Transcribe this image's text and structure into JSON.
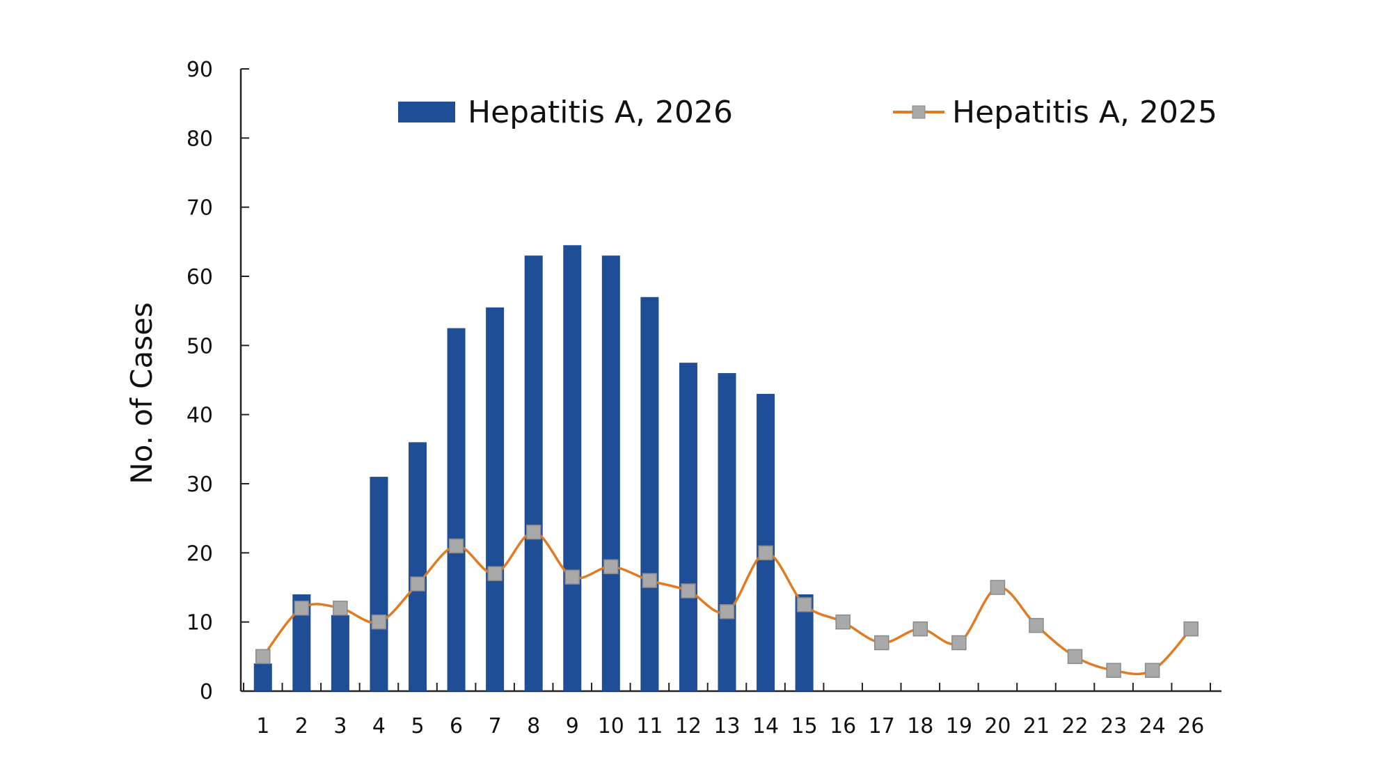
{
  "chart_data": {
    "type": "bar",
    "title": "",
    "xlabel": "",
    "ylabel": "No. of Cases",
    "ylim": [
      0,
      90
    ],
    "yticks": [
      0,
      10,
      20,
      30,
      40,
      50,
      60,
      70,
      80,
      90
    ],
    "grid": false,
    "legend_placement": "top",
    "categories": [
      "1",
      "2",
      "3",
      "4",
      "5",
      "6",
      "7",
      "8",
      "9",
      "10",
      "11",
      "12",
      "13",
      "14",
      "15",
      "16",
      "17",
      "18",
      "19",
      "20",
      "21",
      "22",
      "23",
      "24",
      "26"
    ],
    "series": [
      {
        "name": "Hepatitis A, 2026",
        "type": "bar",
        "color": "#1f4e96",
        "values": [
          4,
          14,
          11,
          31,
          36,
          52.5,
          55.5,
          63,
          64.5,
          63,
          57,
          47.5,
          46,
          43,
          14,
          null,
          null,
          null,
          null,
          null,
          null,
          null,
          null,
          null,
          null
        ]
      },
      {
        "name": "Hepatitis A, 2025",
        "type": "line",
        "color": "#e07b24",
        "marker_color": "#a9a9a9",
        "values": [
          5,
          12,
          12,
          10,
          15.5,
          21,
          17,
          23,
          16.5,
          18,
          16,
          14.5,
          11.5,
          20,
          12.5,
          10,
          7,
          9,
          7,
          15,
          9.5,
          5,
          3,
          3,
          9
        ]
      }
    ]
  }
}
